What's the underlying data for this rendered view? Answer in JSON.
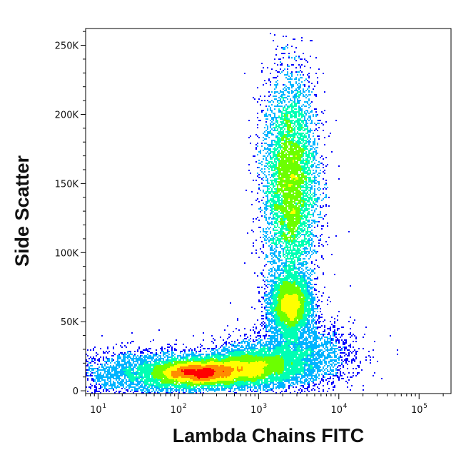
{
  "chart_data": {
    "type": "scatter",
    "subtype": "flow-cytometry density dot plot",
    "xlabel": "Lambda Chains FITC",
    "ylabel": "Side Scatter",
    "x_scale": "log",
    "xlim": [
      7,
      250000
    ],
    "ylim": [
      -2000,
      262144
    ],
    "x_ticks": [
      {
        "value": 10,
        "base": "10",
        "exp": "1"
      },
      {
        "value": 100,
        "base": "10",
        "exp": "2"
      },
      {
        "value": 1000,
        "base": "10",
        "exp": "3"
      },
      {
        "value": 10000,
        "base": "10",
        "exp": "4"
      },
      {
        "value": 100000,
        "base": "10",
        "exp": "5"
      }
    ],
    "y_ticks": [
      {
        "value": 0,
        "label": "0"
      },
      {
        "value": 50000,
        "label": "50K"
      },
      {
        "value": 100000,
        "label": "100K"
      },
      {
        "value": 150000,
        "label": "150K"
      },
      {
        "value": 200000,
        "label": "200K"
      },
      {
        "value": 250000,
        "label": "250K"
      }
    ],
    "grid": false,
    "color_scale": [
      "#0000ff",
      "#00b4ff",
      "#00ffb4",
      "#6cff00",
      "#ffff00",
      "#ff8c00",
      "#ff0000"
    ],
    "populations": [
      {
        "x_center": 2500,
        "y_center": 150000,
        "x_spread_decades": 0.17,
        "y_spread": 38000,
        "weight": 0.38
      },
      {
        "x_center": 2500,
        "y_center": 62000,
        "x_spread_decades": 0.13,
        "y_spread": 11000,
        "weight": 0.12
      },
      {
        "x_center": 180,
        "y_center": 13000,
        "x_spread_decades": 0.3,
        "y_spread": 5000,
        "weight": 0.22
      },
      {
        "x_center": 800,
        "y_center": 17000,
        "x_spread_decades": 0.3,
        "y_spread": 7000,
        "weight": 0.14
      },
      {
        "x_center": 40,
        "y_center": 12000,
        "x_spread_decades": 0.45,
        "y_spread": 9000,
        "weight": 0.07
      },
      {
        "x_center": 3000,
        "y_center": 25000,
        "x_spread_decades": 0.35,
        "y_spread": 12000,
        "weight": 0.07
      }
    ],
    "event_count": 40000
  }
}
